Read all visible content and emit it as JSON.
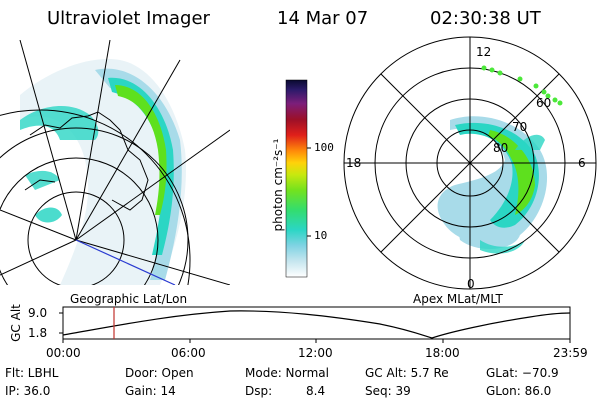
{
  "header": {
    "instrument": "Ultraviolet Imager",
    "date": "14 Mar 07",
    "time": "02:30:38 UT"
  },
  "colorbar": {
    "unit_label": "photon cm⁻²s⁻¹",
    "tick_labels": [
      "100",
      "10"
    ]
  },
  "geo_panel": {
    "label": "Geographic Lat/Lon"
  },
  "polar_panel": {
    "label": "Apex MLat/MLT",
    "mlt_labels": {
      "top": "12",
      "left": "18",
      "right": "6",
      "bottom": "0"
    },
    "lat_labels": [
      "60",
      "70",
      "80"
    ]
  },
  "altitude_plot": {
    "axis_label": "GC Alt",
    "y_ticks": [
      "9.0",
      "1.8"
    ],
    "x_ticks": [
      "00:00",
      "06:00",
      "12:00",
      "18:00",
      "23:59"
    ],
    "current_marker_time": "02:30"
  },
  "status": {
    "filter": "Flt: LBHL",
    "ip": "IP: 36.0",
    "door": "Door: Open",
    "gain": "Gain: 14",
    "mode": "Mode: Normal",
    "dsp_label": "Dsp:",
    "dsp_value": "8.4",
    "gc_alt": "GC Alt: 5.7 Re",
    "seq": "Seq: 39",
    "glat": "GLat: −70.9",
    "glon": "GLon: 86.0"
  },
  "colors": {
    "aurora_bright": "#5ee01e",
    "aurora_mid": "#2bd6c4",
    "aurora_low": "#a8dbe9",
    "marker_red": "#c0302a",
    "subsolar_line": "#2a3bd1",
    "dots_green": "#4ce83a"
  }
}
